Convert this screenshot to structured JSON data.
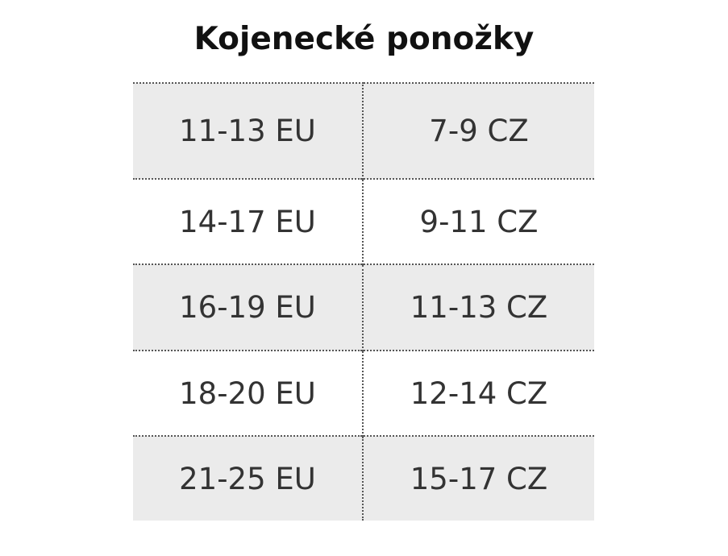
{
  "header": {
    "title": "Kojenecké ponožky"
  },
  "table": {
    "rows": [
      [
        "11-13 EU",
        "7-9 CZ"
      ],
      [
        "14-17 EU",
        "9-11 CZ"
      ],
      [
        "16-19 EU",
        "11-13 CZ"
      ],
      [
        "18-20 EU",
        "12-14 CZ"
      ],
      [
        "21-25 EU",
        "15-17 CZ"
      ]
    ]
  }
}
